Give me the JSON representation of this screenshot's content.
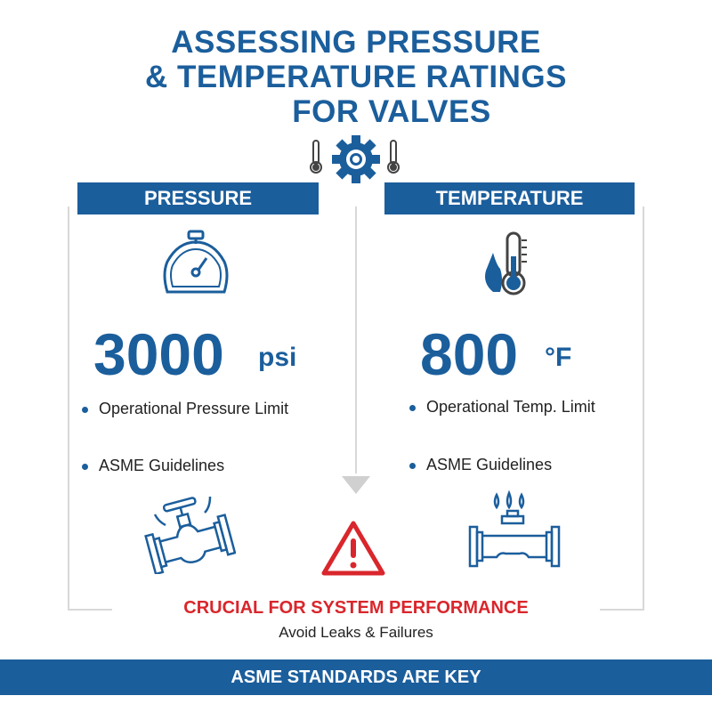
{
  "title": {
    "line1": "ASSESSING PRESSURE",
    "line2": "& TEMPERATURE RATINGS",
    "line3": "FOR VALVES"
  },
  "colors": {
    "primary": "#1b5e9c",
    "alert": "#d9262c",
    "text": "#222222"
  },
  "pressure": {
    "header": "PRESSURE",
    "value": "3000",
    "unit": "psi",
    "bullets": [
      "Operational Pressure Limit",
      "ASME Guidelines"
    ],
    "icons": [
      "pressure-gauge-icon",
      "valve-icon"
    ]
  },
  "temperature": {
    "header": "TEMPERATURE",
    "value": "800",
    "unit": "°F",
    "bullets": [
      "Operational Temp. Limit",
      "ASME Guidelines"
    ],
    "icons": [
      "flame-thermometer-icon",
      "hot-valve-icon"
    ]
  },
  "center": {
    "icons": [
      "thermometer-icon",
      "gear-icon",
      "thermometer-icon",
      "down-arrow-icon",
      "warning-icon"
    ]
  },
  "callout": {
    "headline": "CRUCIAL FOR SYSTEM PERFORMANCE",
    "subtext": "Avoid Leaks & Failures"
  },
  "footer": {
    "text": "ASME STANDARDS ARE KEY"
  }
}
